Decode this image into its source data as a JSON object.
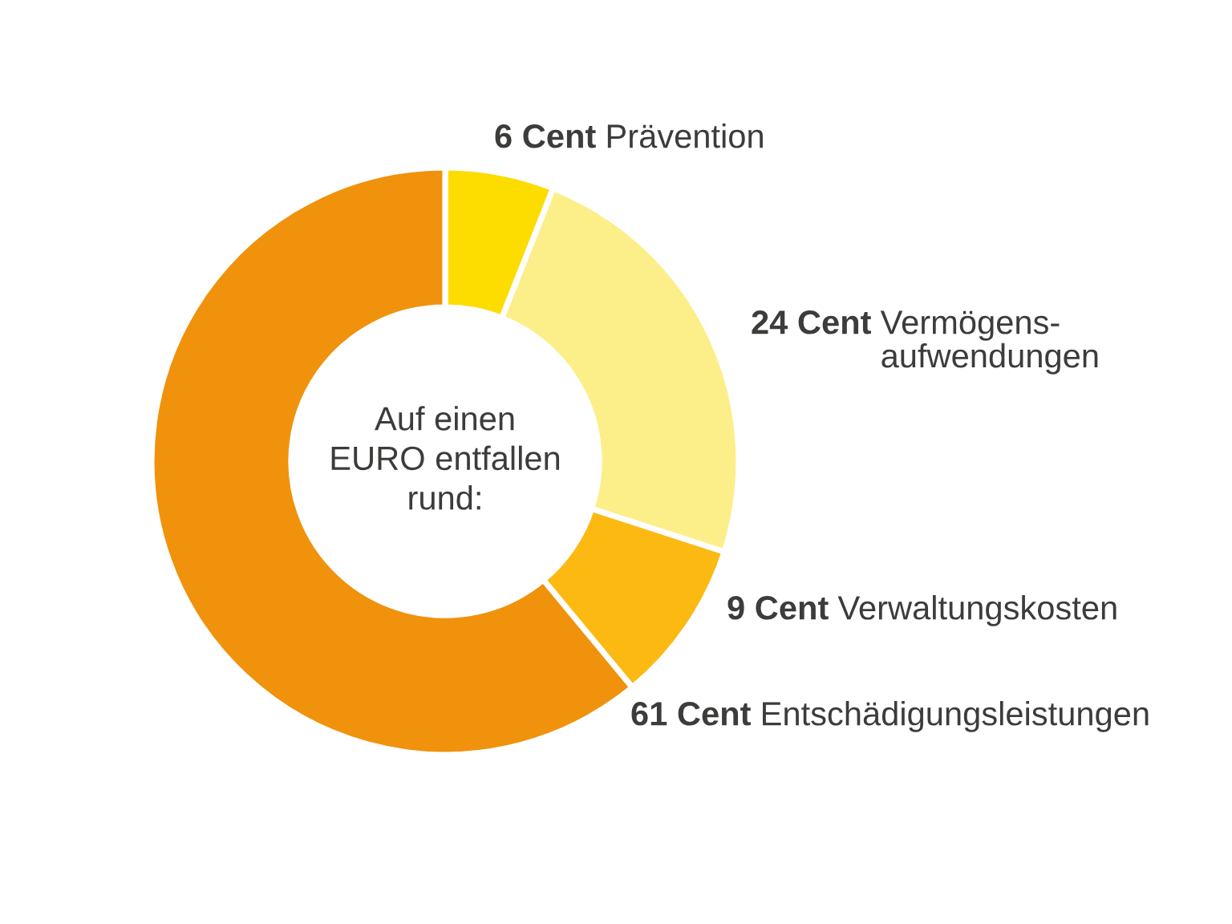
{
  "chart_data": {
    "type": "donut",
    "categories": [
      "Prävention",
      "Vermögens-\naufwendungen",
      "Verwaltungskosten",
      "Entschädigungsleistungen"
    ],
    "values": [
      6,
      24,
      9,
      61
    ],
    "value_labels": [
      "6 Cent",
      "24 Cent",
      "9 Cent",
      "61 Cent"
    ],
    "colors": [
      "#fddc00",
      "#fcef8a",
      "#fbb912",
      "#f0920c"
    ],
    "annotations": [
      "Auf einen\nEURO entfallen\nrund:"
    ]
  }
}
